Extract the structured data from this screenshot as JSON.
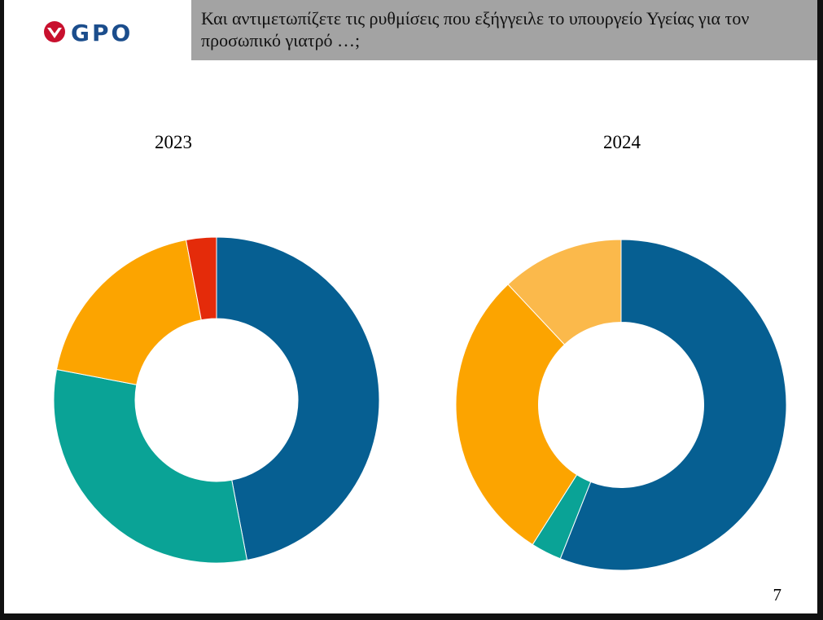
{
  "header": {
    "logo_text": "GPO",
    "question": "Και αντιμετωπίζετε τις ρυθμίσεις που εξήγγειλε το υπουργείο Υγείας για τον προσωπικό γιατρό …;"
  },
  "colors": {
    "brand_red": "#c8102e",
    "brand_blue": "#1b4d8c",
    "title_background": "#a3a3a3"
  },
  "chart_data": [
    {
      "type": "pie",
      "variant": "donut",
      "title": "2023",
      "legend": "none",
      "slices": [
        {
          "value": 47,
          "color": "#065f92"
        },
        {
          "value": 31,
          "color": "#0aa396"
        },
        {
          "value": 19,
          "color": "#fca400"
        },
        {
          "value": 3,
          "color": "#e42b0a"
        }
      ]
    },
    {
      "type": "pie",
      "variant": "donut",
      "title": "2024",
      "legend": "none",
      "slices": [
        {
          "value": 56,
          "color": "#065f92"
        },
        {
          "value": 3,
          "color": "#0aa396"
        },
        {
          "value": 29,
          "color": "#fca400"
        },
        {
          "value": 12,
          "color": "#fbb94b"
        }
      ]
    }
  ],
  "footer": {
    "page_number": "7"
  }
}
